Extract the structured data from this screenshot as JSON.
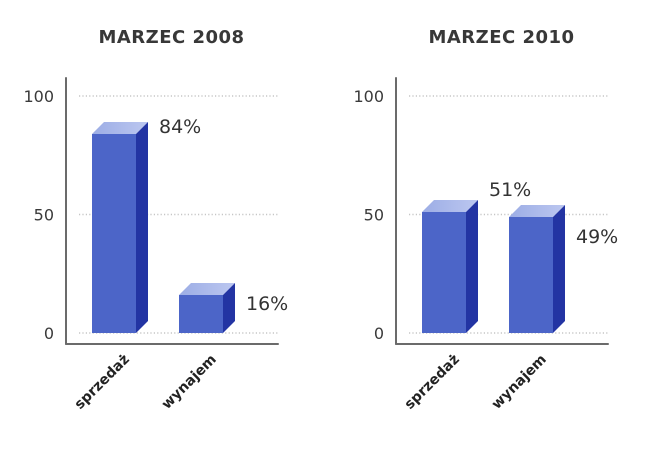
{
  "chart_data": [
    {
      "type": "bar",
      "title": "MARZEC 2008",
      "categories": [
        "sprzedaż",
        "wynajem"
      ],
      "values": [
        84,
        16
      ],
      "data_labels": [
        "84%",
        "16%"
      ],
      "xlabel": "",
      "ylabel": "",
      "ylim": [
        0,
        100
      ],
      "yticks": [
        100,
        50,
        0
      ],
      "grid": "horizontal-dotted",
      "bar_style": "3d",
      "legend": "none",
      "label_dy": [
        -1,
        15
      ]
    },
    {
      "type": "bar",
      "title": "MARZEC 2010",
      "categories": [
        "sprzedaż",
        "wynajem"
      ],
      "values": [
        51,
        49
      ],
      "data_labels": [
        "51%",
        "49%"
      ],
      "xlabel": "",
      "ylabel": "",
      "ylim": [
        0,
        100
      ],
      "yticks": [
        100,
        50,
        0
      ],
      "grid": "horizontal-dotted",
      "bar_style": "3d",
      "legend": "none",
      "label_dy": [
        -16,
        26
      ]
    }
  ],
  "colors": {
    "background": "#ffffff",
    "bar_front": "#4c65c8",
    "bar_side": "#2334a3",
    "bar_top_left": "#9cade5",
    "bar_top_right": "#bcc7f0",
    "axis": "#6b6b6b",
    "gridline": "#c6c6c6",
    "title_text": "#383838",
    "tick_text": "#3a3a3a",
    "value_text": "#333333",
    "category_text": "#222222"
  }
}
